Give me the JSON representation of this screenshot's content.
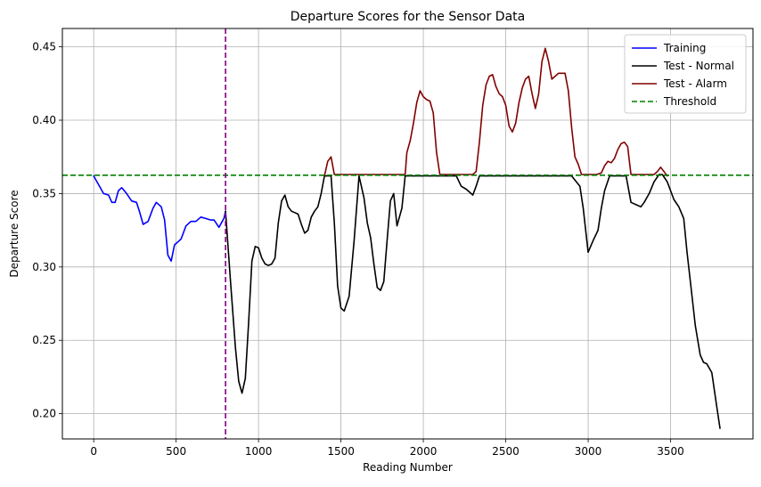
{
  "chart_data": {
    "type": "line",
    "title": "Departure Scores for the Sensor Data",
    "xlabel": "Reading Number",
    "ylabel": "Departure Score",
    "xlim": [
      -190,
      4000
    ],
    "ylim": [
      0.1828,
      0.4625
    ],
    "xticks": [
      0,
      500,
      1000,
      1500,
      2000,
      2500,
      3000,
      3500
    ],
    "xtick_labels": [
      "0",
      "500",
      "1000",
      "1500",
      "2000",
      "2500",
      "3000",
      "3500"
    ],
    "yticks": [
      0.2,
      0.25,
      0.3,
      0.35,
      0.4,
      0.45
    ],
    "ytick_labels": [
      "0.20",
      "0.25",
      "0.30",
      "0.35",
      "0.40",
      "0.45"
    ],
    "grid": true,
    "legend_position": "top-right",
    "threshold": 0.3625,
    "split_line_x": 800,
    "series": [
      {
        "name": "Training",
        "color": "#0000ff",
        "style": "solid",
        "x": [
          0,
          30,
          60,
          90,
          110,
          130,
          150,
          170,
          200,
          230,
          260,
          280,
          300,
          330,
          360,
          380,
          410,
          430,
          450,
          470,
          490,
          510,
          530,
          560,
          590,
          620,
          650,
          680,
          710,
          730,
          760,
          790,
          800
        ],
        "y": [
          0.362,
          0.356,
          0.35,
          0.349,
          0.344,
          0.344,
          0.352,
          0.354,
          0.35,
          0.345,
          0.344,
          0.337,
          0.329,
          0.331,
          0.34,
          0.344,
          0.341,
          0.332,
          0.308,
          0.304,
          0.315,
          0.317,
          0.319,
          0.328,
          0.331,
          0.331,
          0.334,
          0.333,
          0.332,
          0.332,
          0.327,
          0.333,
          0.338
        ]
      },
      {
        "name": "Test - Normal",
        "color": "#000000",
        "style": "solid",
        "x": [
          800,
          830,
          860,
          880,
          900,
          920,
          940,
          960,
          980,
          1000,
          1020,
          1040,
          1060,
          1080,
          1100,
          1120,
          1140,
          1160,
          1180,
          1200,
          1220,
          1240,
          1260,
          1280,
          1300,
          1320,
          1340,
          1360,
          1380,
          1400,
          1420,
          1440,
          1460,
          1480,
          1500,
          1520,
          1550,
          1580,
          1610,
          1640,
          1660,
          1680,
          1700,
          1720,
          1740,
          1760,
          1780,
          1800,
          1820,
          1840,
          1870,
          1890,
          1900,
          1920,
          1960,
          2000,
          2050,
          2100,
          2150,
          2180,
          2200,
          2230,
          2260,
          2290,
          2300,
          2320,
          2340,
          2360,
          2400,
          2500,
          2600,
          2700,
          2800,
          2900,
          2950,
          2970,
          3000,
          3030,
          3060,
          3080,
          3100,
          3130,
          3160,
          3200,
          3230,
          3260,
          3300,
          3320,
          3340,
          3370,
          3400,
          3430,
          3450,
          3480,
          3500,
          3520,
          3550,
          3580,
          3600,
          3630,
          3650,
          3680,
          3700,
          3720,
          3750,
          3780,
          3800
        ],
        "y": [
          0.338,
          0.29,
          0.245,
          0.222,
          0.214,
          0.224,
          0.262,
          0.304,
          0.314,
          0.313,
          0.306,
          0.302,
          0.301,
          0.302,
          0.306,
          0.33,
          0.345,
          0.349,
          0.341,
          0.338,
          0.337,
          0.336,
          0.329,
          0.323,
          0.325,
          0.334,
          0.338,
          0.341,
          0.35,
          0.362,
          0.362,
          0.362,
          0.33,
          0.287,
          0.272,
          0.27,
          0.28,
          0.318,
          0.362,
          0.347,
          0.33,
          0.32,
          0.302,
          0.286,
          0.284,
          0.29,
          0.318,
          0.345,
          0.35,
          0.328,
          0.34,
          0.362,
          0.362,
          0.362,
          0.362,
          0.362,
          0.362,
          0.362,
          0.362,
          0.362,
          0.362,
          0.355,
          0.353,
          0.35,
          0.349,
          0.355,
          0.362,
          0.362,
          0.362,
          0.362,
          0.362,
          0.362,
          0.362,
          0.362,
          0.355,
          0.34,
          0.31,
          0.318,
          0.325,
          0.34,
          0.352,
          0.362,
          0.362,
          0.362,
          0.362,
          0.344,
          0.342,
          0.341,
          0.344,
          0.35,
          0.358,
          0.363,
          0.363,
          0.358,
          0.352,
          0.346,
          0.341,
          0.333,
          0.31,
          0.28,
          0.26,
          0.24,
          0.235,
          0.234,
          0.228,
          0.205,
          0.19
        ]
      },
      {
        "name": "Test - Alarm",
        "color": "#800000",
        "style": "solid",
        "x": [
          1400,
          1420,
          1440,
          1460,
          1500,
          1600,
          1700,
          1800,
          1860,
          1890,
          1900,
          1920,
          1940,
          1960,
          1980,
          2000,
          2020,
          2040,
          2060,
          2080,
          2100,
          2120,
          2140,
          2160,
          2180,
          2200,
          2220,
          2250,
          2280,
          2300,
          2320,
          2340,
          2360,
          2380,
          2400,
          2420,
          2440,
          2460,
          2480,
          2500,
          2520,
          2540,
          2560,
          2580,
          2600,
          2620,
          2640,
          2660,
          2680,
          2700,
          2720,
          2740,
          2760,
          2780,
          2800,
          2820,
          2840,
          2860,
          2880,
          2900,
          2920,
          2940,
          2960,
          3000,
          3050,
          3080,
          3100,
          3120,
          3140,
          3160,
          3180,
          3200,
          3220,
          3240,
          3250,
          3260,
          3280,
          3320,
          3360,
          3400,
          3420,
          3440,
          3460,
          3480
        ],
        "y": [
          0.362,
          0.372,
          0.375,
          0.363,
          0.363,
          0.363,
          0.363,
          0.363,
          0.363,
          0.363,
          0.378,
          0.386,
          0.398,
          0.412,
          0.42,
          0.416,
          0.414,
          0.413,
          0.405,
          0.378,
          0.363,
          0.363,
          0.363,
          0.363,
          0.363,
          0.363,
          0.363,
          0.363,
          0.363,
          0.363,
          0.365,
          0.385,
          0.41,
          0.424,
          0.43,
          0.431,
          0.423,
          0.418,
          0.416,
          0.41,
          0.396,
          0.392,
          0.398,
          0.412,
          0.422,
          0.428,
          0.43,
          0.418,
          0.408,
          0.418,
          0.44,
          0.449,
          0.44,
          0.428,
          0.43,
          0.432,
          0.432,
          0.432,
          0.42,
          0.395,
          0.375,
          0.37,
          0.363,
          0.363,
          0.363,
          0.364,
          0.369,
          0.372,
          0.371,
          0.374,
          0.38,
          0.384,
          0.385,
          0.382,
          0.372,
          0.363,
          0.363,
          0.363,
          0.363,
          0.363,
          0.365,
          0.368,
          0.365,
          0.362
        ]
      },
      {
        "name": "Threshold",
        "color": "#008000",
        "style": "dashed"
      }
    ]
  }
}
